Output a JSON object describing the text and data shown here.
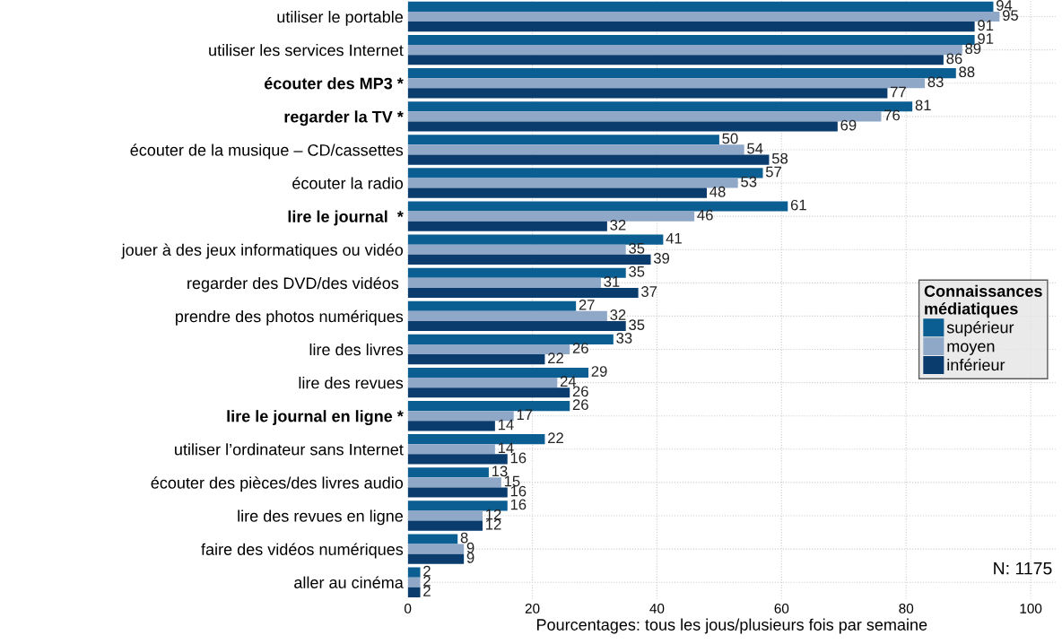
{
  "chart_data": {
    "type": "bar",
    "orientation": "horizontal",
    "categories": [
      "utiliser le portable",
      "utiliser les services Internet",
      "écouter des MP3 *",
      "regarder la TV *",
      "écouter de la musique – CD/cassettes",
      "écouter la radio",
      "lire le journal  *",
      "jouer à des jeux informatiques ou vidéo",
      "regarder des DVD/des vidéos ",
      "prendre des photos numériques",
      "lire des livres",
      "lire des revues",
      "lire le journal en ligne *",
      "utiliser l’ordinateur sans Internet",
      "écouter des pièces/des livres audio",
      "lire des revues en ligne",
      "faire des vidéos numériques",
      "aller au cinéma"
    ],
    "series": [
      {
        "name": "supérieur",
        "color": "#0b5e92",
        "values": [
          94,
          91,
          88,
          81,
          50,
          57,
          61,
          41,
          35,
          27,
          33,
          29,
          26,
          22,
          13,
          16,
          8,
          2
        ]
      },
      {
        "name": "moyen",
        "color": "#8fa8c8",
        "values": [
          95,
          89,
          83,
          76,
          54,
          53,
          46,
          35,
          31,
          32,
          26,
          24,
          17,
          14,
          15,
          12,
          9,
          2
        ]
      },
      {
        "name": "inférieur",
        "color": "#0b3c6e",
        "values": [
          91,
          86,
          77,
          69,
          58,
          48,
          32,
          39,
          37,
          35,
          22,
          26,
          14,
          16,
          16,
          12,
          9,
          2
        ]
      }
    ],
    "xlabel": "Pourcentages: tous les jous/plusieurs fois par semaine",
    "legend_title": "Connaissances\nmédiatiques",
    "annotations": [
      "N: 1175"
    ],
    "xlim": [
      0,
      104
    ],
    "xticks": [
      0,
      20,
      40,
      60,
      80,
      100
    ],
    "data_labels": true,
    "grid": true,
    "legend": "right"
  }
}
